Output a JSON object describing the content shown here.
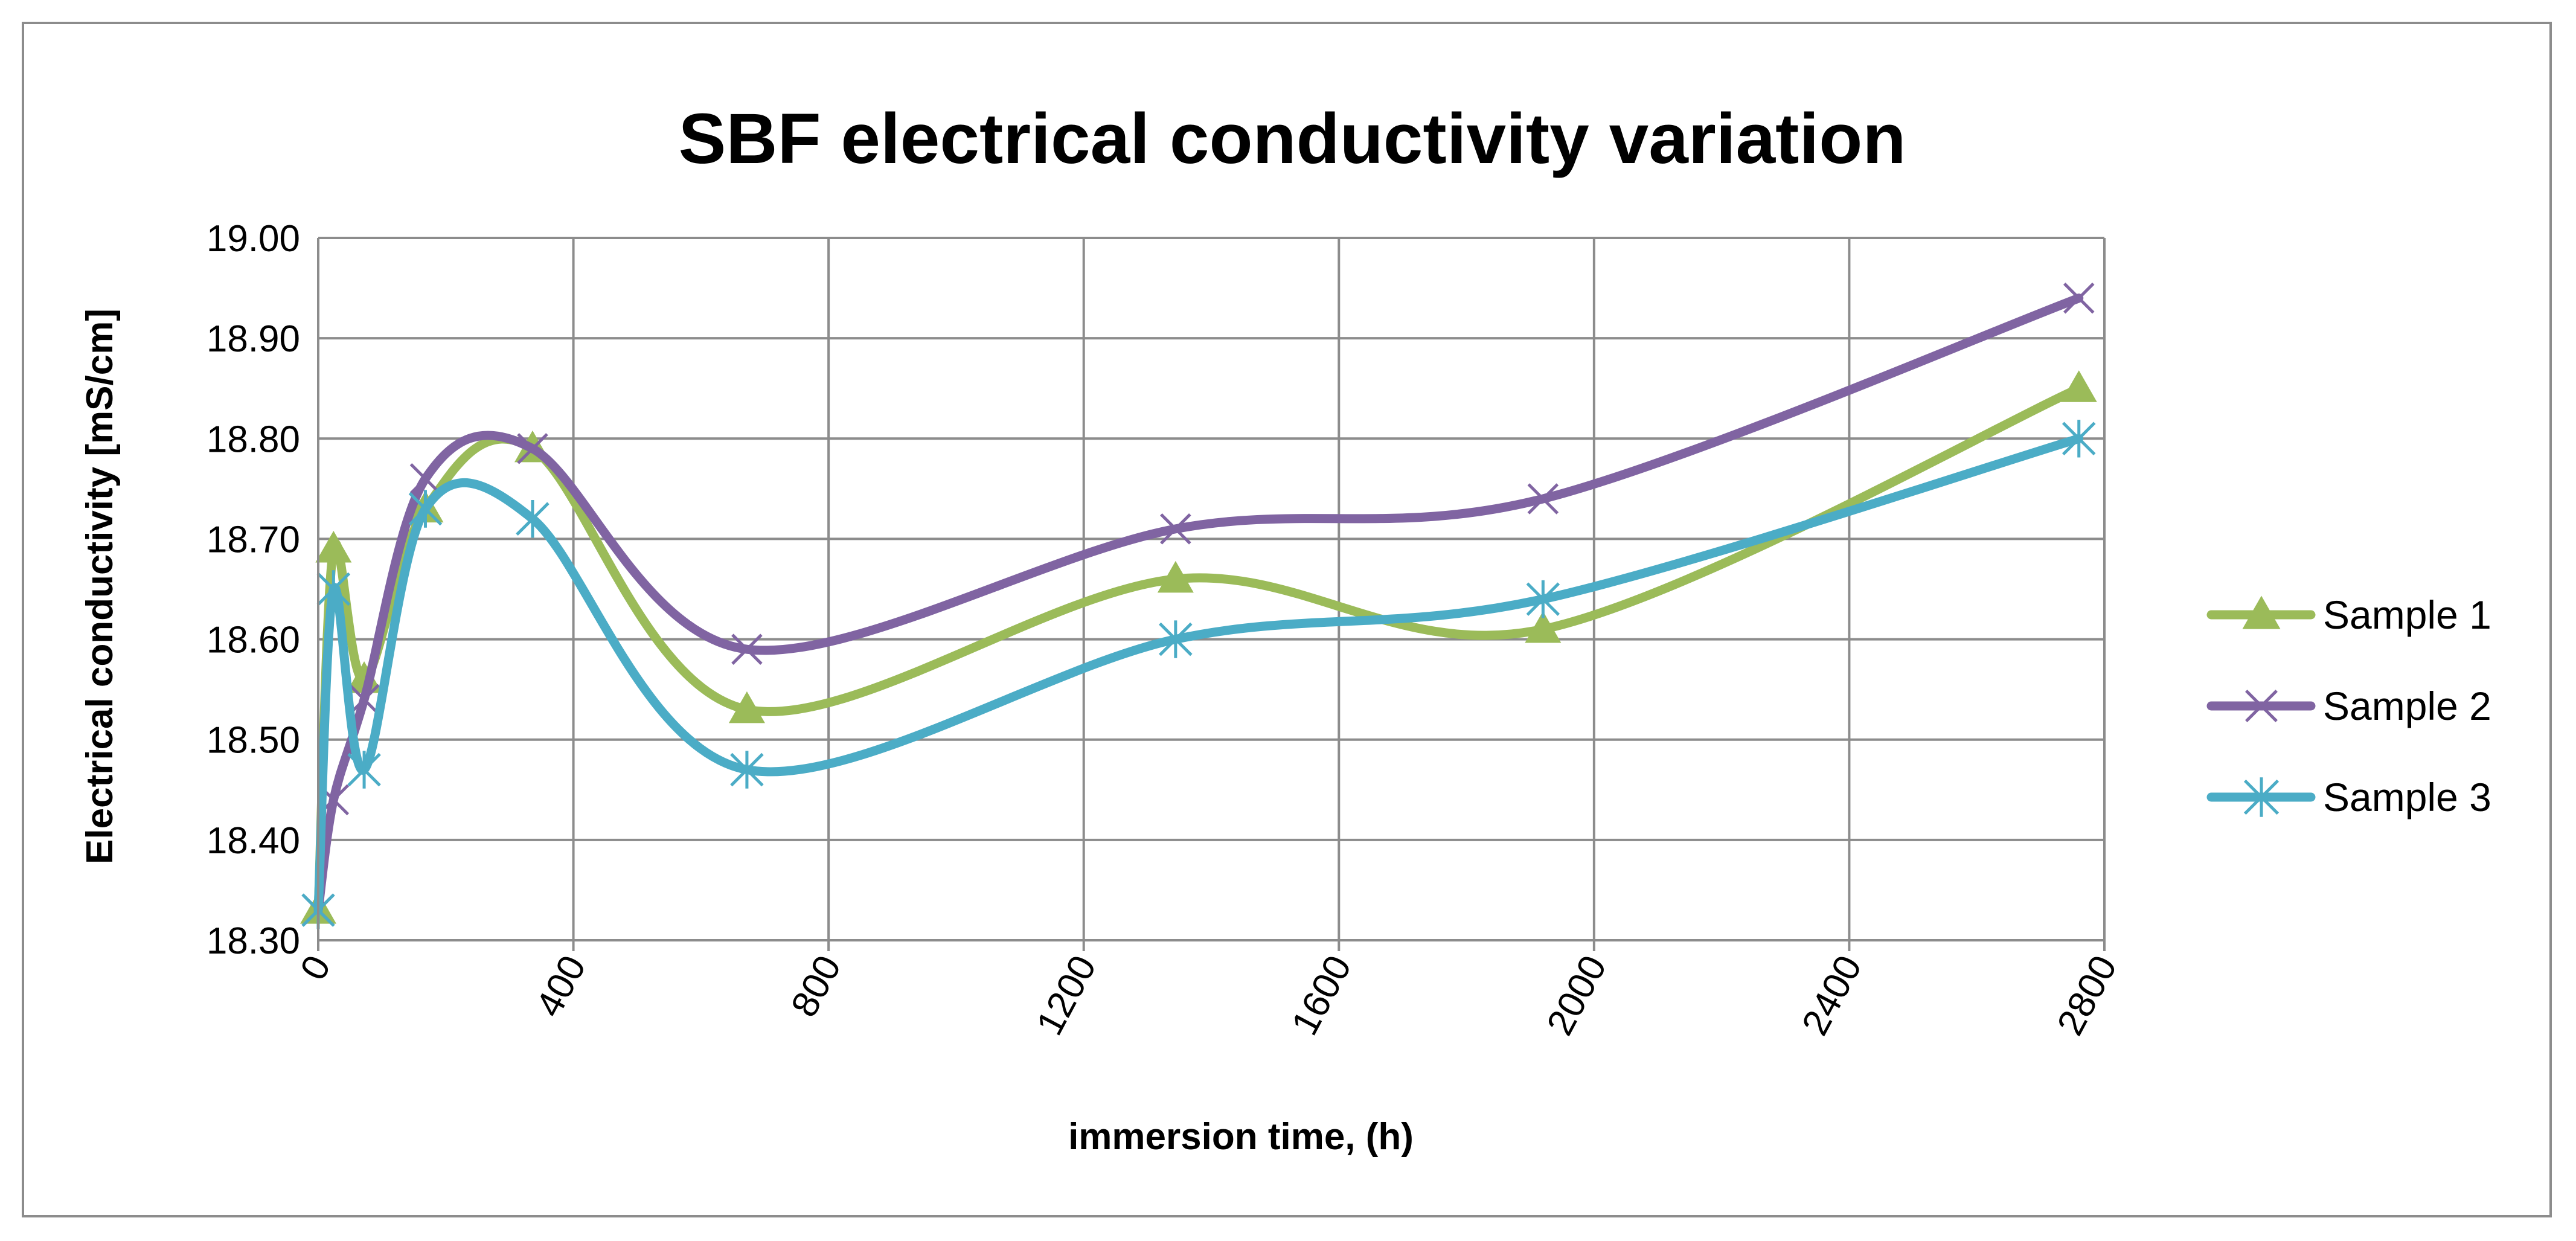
{
  "chart_data": {
    "type": "line",
    "title": "SBF electrical conductivity variation",
    "xlabel": "immersion time, (h)",
    "ylabel": "Electrical conductivity [mS/cm]",
    "xlim": [
      0,
      2800
    ],
    "ylim": [
      18.3,
      19.0
    ],
    "x_ticks": [
      "0",
      "400",
      "800",
      "1200",
      "1600",
      "2000",
      "2400",
      "2800"
    ],
    "y_ticks": [
      "18.30",
      "18.40",
      "18.50",
      "18.60",
      "18.70",
      "18.80",
      "18.90",
      "19.00"
    ],
    "grid": true,
    "legend": "right",
    "series": [
      {
        "name": "Sample 1",
        "color": "#9bbb59",
        "marker": "triangle",
        "x": [
          0,
          24,
          72,
          168,
          336,
          672,
          1344,
          1920,
          2760
        ],
        "y": [
          18.33,
          18.69,
          18.56,
          18.73,
          18.79,
          18.53,
          18.66,
          18.61,
          18.85
        ]
      },
      {
        "name": "Sample 2",
        "color": "#8064a2",
        "marker": "x",
        "x": [
          0,
          24,
          72,
          168,
          336,
          672,
          1344,
          1920,
          2760
        ],
        "y": [
          18.33,
          18.44,
          18.54,
          18.76,
          18.79,
          18.59,
          18.71,
          18.74,
          18.94
        ]
      },
      {
        "name": "Sample 3",
        "color": "#4bacc6",
        "marker": "star",
        "x": [
          0,
          24,
          72,
          168,
          336,
          672,
          1344,
          1920,
          2760
        ],
        "y": [
          18.33,
          18.65,
          18.47,
          18.73,
          18.72,
          18.47,
          18.6,
          18.64,
          18.8
        ]
      }
    ]
  }
}
